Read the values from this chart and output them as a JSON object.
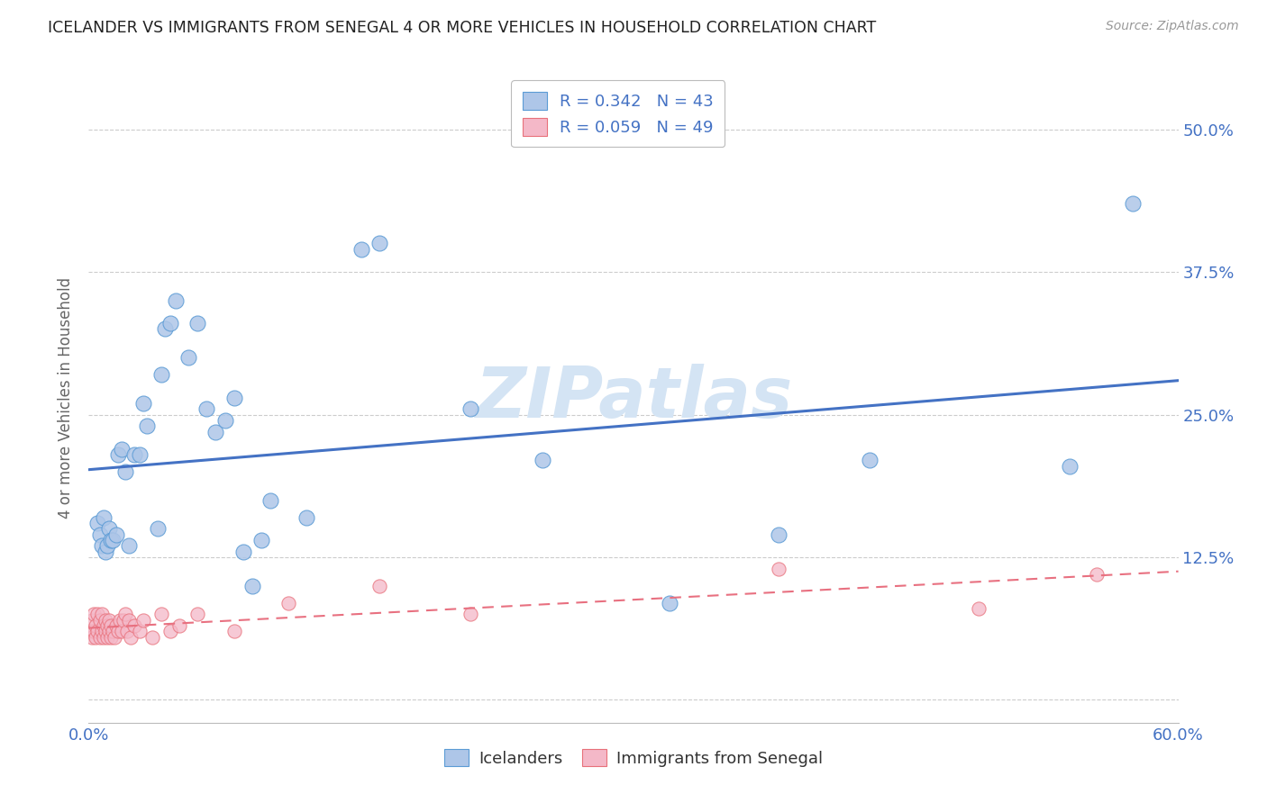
{
  "title": "ICELANDER VS IMMIGRANTS FROM SENEGAL 4 OR MORE VEHICLES IN HOUSEHOLD CORRELATION CHART",
  "source": "Source: ZipAtlas.com",
  "ylabel_label": "4 or more Vehicles in Household",
  "xlim": [
    0.0,
    0.6
  ],
  "ylim": [
    -0.02,
    0.55
  ],
  "xticks": [
    0.0,
    0.1,
    0.2,
    0.3,
    0.4,
    0.5,
    0.6
  ],
  "xtick_labels": [
    "0.0%",
    "",
    "",
    "",
    "",
    "",
    "60.0%"
  ],
  "yticks": [
    0.0,
    0.125,
    0.25,
    0.375,
    0.5
  ],
  "ytick_labels": [
    "",
    "12.5%",
    "25.0%",
    "37.5%",
    "50.0%"
  ],
  "icelanders_x": [
    0.005,
    0.006,
    0.007,
    0.008,
    0.009,
    0.01,
    0.011,
    0.012,
    0.013,
    0.015,
    0.016,
    0.018,
    0.02,
    0.022,
    0.025,
    0.028,
    0.03,
    0.032,
    0.038,
    0.04,
    0.042,
    0.045,
    0.048,
    0.055,
    0.06,
    0.065,
    0.07,
    0.075,
    0.08,
    0.085,
    0.09,
    0.095,
    0.1,
    0.12,
    0.15,
    0.16,
    0.21,
    0.25,
    0.32,
    0.38,
    0.43,
    0.54,
    0.575
  ],
  "icelanders_y": [
    0.155,
    0.145,
    0.135,
    0.16,
    0.13,
    0.135,
    0.15,
    0.14,
    0.14,
    0.145,
    0.215,
    0.22,
    0.2,
    0.135,
    0.215,
    0.215,
    0.26,
    0.24,
    0.15,
    0.285,
    0.325,
    0.33,
    0.35,
    0.3,
    0.33,
    0.255,
    0.235,
    0.245,
    0.265,
    0.13,
    0.1,
    0.14,
    0.175,
    0.16,
    0.395,
    0.4,
    0.255,
    0.21,
    0.085,
    0.145,
    0.21,
    0.205,
    0.435
  ],
  "senegal_x": [
    0.001,
    0.002,
    0.002,
    0.003,
    0.003,
    0.004,
    0.004,
    0.005,
    0.005,
    0.006,
    0.006,
    0.007,
    0.007,
    0.008,
    0.008,
    0.009,
    0.009,
    0.01,
    0.01,
    0.011,
    0.011,
    0.012,
    0.012,
    0.013,
    0.014,
    0.015,
    0.016,
    0.017,
    0.018,
    0.019,
    0.02,
    0.021,
    0.022,
    0.023,
    0.025,
    0.028,
    0.03,
    0.035,
    0.04,
    0.045,
    0.05,
    0.06,
    0.08,
    0.11,
    0.16,
    0.21,
    0.38,
    0.49,
    0.555
  ],
  "senegal_y": [
    0.06,
    0.055,
    0.07,
    0.06,
    0.075,
    0.055,
    0.065,
    0.06,
    0.075,
    0.055,
    0.07,
    0.06,
    0.075,
    0.055,
    0.065,
    0.06,
    0.07,
    0.055,
    0.065,
    0.06,
    0.07,
    0.055,
    0.065,
    0.06,
    0.055,
    0.065,
    0.06,
    0.07,
    0.06,
    0.07,
    0.075,
    0.06,
    0.07,
    0.055,
    0.065,
    0.06,
    0.07,
    0.055,
    0.075,
    0.06,
    0.065,
    0.075,
    0.06,
    0.085,
    0.1,
    0.075,
    0.115,
    0.08,
    0.11
  ],
  "icelanders_color": "#aec6e8",
  "icelanders_edge_color": "#5b9bd5",
  "senegal_color": "#f4b8c8",
  "senegal_edge_color": "#e8707a",
  "icelanders_line_color": "#4472c4",
  "senegal_line_color": "#e87080",
  "background_color": "#ffffff",
  "grid_color": "#cccccc",
  "title_color": "#222222",
  "axis_label_color": "#666666",
  "tick_color": "#4472c4",
  "source_color": "#999999",
  "watermark_color": "#d4e4f4",
  "legend_text_color": "#4472c4",
  "R_icelanders": 0.342,
  "N_icelanders": 43,
  "R_senegal": 0.059,
  "N_senegal": 49
}
